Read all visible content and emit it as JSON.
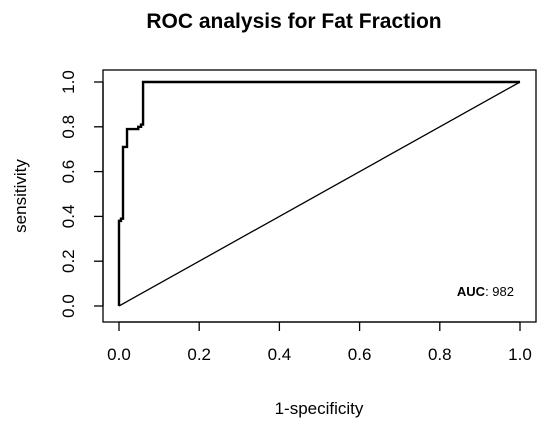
{
  "chart_data": {
    "type": "line",
    "title": "ROC analysis for Fat Fraction",
    "xlabel": "1-specificity",
    "ylabel": "sensitivity",
    "xlim": [
      0,
      1
    ],
    "ylim": [
      0,
      1
    ],
    "x_ticks": [
      "0.0",
      "0.2",
      "0.4",
      "0.6",
      "0.8",
      "1.0"
    ],
    "y_ticks": [
      "0.0",
      "0.2",
      "0.4",
      "0.6",
      "0.8",
      "1.0"
    ],
    "grid": false,
    "series": [
      {
        "x": [
          0,
          0,
          0.005,
          0.005,
          0.01,
          0.01,
          0.02,
          0.02,
          0.025,
          0.025,
          0.048,
          0.048,
          0.055,
          0.055,
          0.06,
          0.06,
          1.0
        ],
        "y": [
          0,
          0.38,
          0.38,
          0.39,
          0.39,
          0.71,
          0.71,
          0.79,
          0.79,
          0.79,
          0.79,
          0.8,
          0.8,
          0.81,
          0.81,
          1.0,
          1.0
        ]
      }
    ],
    "reference_line": {
      "x": [
        0,
        1
      ],
      "y": [
        0,
        1
      ]
    },
    "annotation": {
      "label": "AUC",
      "separator": ": ",
      "value": "982"
    }
  }
}
